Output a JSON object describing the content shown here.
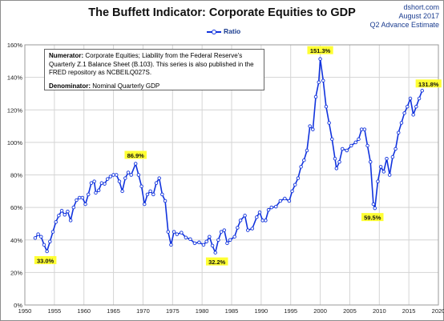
{
  "header": {
    "title": "The Buffett Indicator: Corporate Equities to GDP",
    "brand": "dshort.com",
    "date": "August 2017",
    "estimate": "Q2 Advance Estimate"
  },
  "legend": {
    "series_label": "Ratio"
  },
  "note": {
    "numerator_label": "Numerator:",
    "numerator_text": "Corporate Equities; Liability from the Federal Reserve's Quarterly Z.1 Balance Sheet (B.103). This series is also published in the FRED repository as NCBEILQ027S.",
    "denominator_label": "Denominator:",
    "denominator_text": "Nominal Quarterly GDP"
  },
  "colors": {
    "series": "#1133dd",
    "callout": "#ffff33",
    "grid": "#d4d4d4"
  },
  "chart_data": {
    "type": "line",
    "title": "The Buffett Indicator: Corporate Equities to GDP",
    "xlim": [
      1950,
      2020
    ],
    "ylim": [
      0,
      160
    ],
    "x_ticks": [
      1950,
      1955,
      1960,
      1965,
      1970,
      1975,
      1980,
      1985,
      1990,
      1995,
      2000,
      2005,
      2010,
      2015,
      2020
    ],
    "y_ticks": [
      "0%",
      "20%",
      "40%",
      "60%",
      "80%",
      "100%",
      "120%",
      "140%",
      "160%"
    ],
    "y_tick_values": [
      0,
      20,
      40,
      60,
      80,
      100,
      120,
      140,
      160
    ],
    "grid": true,
    "legend_position": "top-center",
    "series": [
      {
        "name": "Ratio",
        "x": [
          1951.75,
          1952.25,
          1952.75,
          1953.25,
          1953.75,
          1954.25,
          1954.75,
          1955.25,
          1955.75,
          1956.25,
          1956.75,
          1957.25,
          1957.75,
          1958.25,
          1958.75,
          1959.25,
          1959.75,
          1960.25,
          1960.75,
          1961.25,
          1961.75,
          1962.0,
          1962.5,
          1963.0,
          1963.5,
          1964.0,
          1964.5,
          1965.0,
          1965.5,
          1966.0,
          1966.5,
          1967.0,
          1967.5,
          1968.0,
          1968.75,
          1969.25,
          1969.75,
          1970.25,
          1970.75,
          1971.25,
          1971.75,
          1972.25,
          1972.75,
          1973.25,
          1973.75,
          1974.25,
          1974.75,
          1975.25,
          1975.75,
          1976.5,
          1977.25,
          1978.0,
          1978.75,
          1979.5,
          1980.25,
          1980.75,
          1981.25,
          1981.75,
          1982.25,
          1982.75,
          1983.25,
          1983.75,
          1984.25,
          1984.75,
          1985.5,
          1986.0,
          1986.5,
          1987.25,
          1987.75,
          1988.5,
          1989.25,
          1989.75,
          1990.25,
          1990.75,
          1991.25,
          1991.75,
          1992.5,
          1993.25,
          1994.0,
          1994.75,
          1995.25,
          1995.75,
          1996.25,
          1996.75,
          1997.25,
          1997.75,
          1998.25,
          1998.75,
          1999.25,
          1999.75,
          2000.0,
          2000.5,
          2001.0,
          2001.5,
          2002.0,
          2002.5,
          2002.75,
          2003.25,
          2003.75,
          2004.5,
          2005.25,
          2006.0,
          2006.5,
          2007.0,
          2007.5,
          2008.0,
          2008.5,
          2009.0,
          2009.25,
          2009.75,
          2010.25,
          2010.75,
          2011.25,
          2011.75,
          2012.25,
          2012.75,
          2013.25,
          2013.75,
          2014.25,
          2014.75,
          2015.25,
          2015.75,
          2016.25,
          2016.75,
          2017.25
        ],
        "values": [
          41.2,
          43.5,
          42.0,
          37.0,
          33.0,
          39.0,
          45.0,
          51.0,
          55.0,
          58.0,
          55.5,
          57.5,
          52.0,
          60.0,
          64.5,
          66.0,
          66.0,
          62.0,
          68.0,
          75.0,
          76.0,
          69.0,
          70.5,
          75.0,
          74.5,
          77.5,
          79.0,
          80.0,
          80.0,
          76.0,
          70.0,
          78.0,
          81.5,
          80.0,
          86.9,
          80.0,
          73.0,
          62.0,
          68.0,
          70.0,
          68.0,
          75.0,
          78.0,
          68.0,
          64.0,
          45.0,
          37.0,
          45.0,
          43.5,
          44.5,
          41.5,
          40.5,
          38.0,
          38.5,
          37.0,
          39.0,
          42.0,
          36.5,
          32.2,
          40.0,
          45.0,
          46.0,
          38.0,
          40.0,
          42.0,
          47.5,
          52.0,
          55.0,
          46.0,
          47.0,
          54.0,
          57.0,
          52.0,
          52.0,
          58.5,
          60.0,
          60.5,
          64.0,
          65.5,
          64.0,
          70.0,
          74.0,
          78.0,
          85.0,
          89.0,
          95.0,
          110.0,
          108.0,
          128.0,
          137.0,
          151.3,
          138.0,
          122.0,
          112.0,
          102.0,
          90.0,
          84.0,
          88.0,
          96.0,
          95.0,
          98.0,
          100.0,
          102.0,
          108.0,
          108.0,
          98.0,
          88.0,
          62.0,
          59.5,
          76.0,
          85.0,
          82.0,
          90.0,
          80.0,
          91.0,
          96.0,
          106.0,
          112.0,
          118.0,
          122.0,
          127.0,
          117.0,
          122.0,
          127.0,
          131.8
        ]
      }
    ],
    "annotations": [
      {
        "x": 1953.75,
        "y": 33.0,
        "text": "33.0%"
      },
      {
        "x": 1968.75,
        "y": 86.9,
        "text": "86.9%"
      },
      {
        "x": 1982.25,
        "y": 32.2,
        "text": "32.2%"
      },
      {
        "x": 2000.0,
        "y": 151.3,
        "text": "151.3%"
      },
      {
        "x": 2009.25,
        "y": 59.5,
        "text": "59.5%"
      },
      {
        "x": 2017.25,
        "y": 131.8,
        "text": "131.8%"
      }
    ]
  }
}
